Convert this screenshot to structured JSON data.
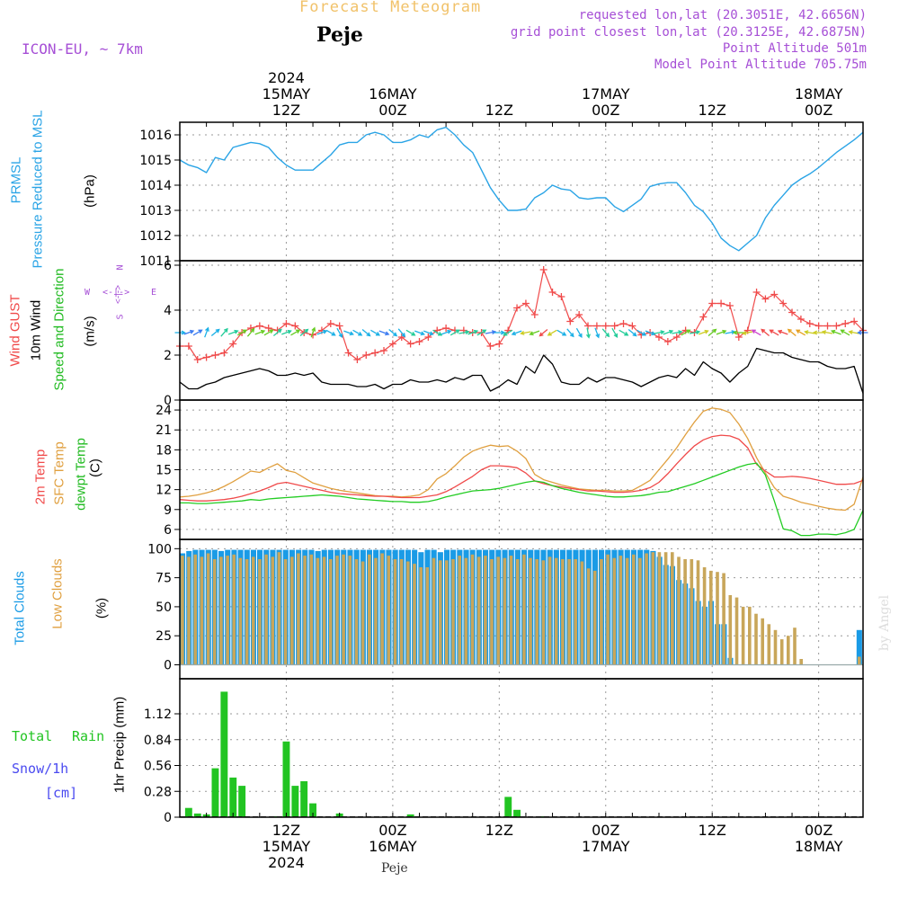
{
  "header": {
    "main_title": "Forecast Meteogram",
    "place": "Peje",
    "model": "ICON-EU, ~ 7km",
    "requested": "requested lon,lat (20.3051E, 42.6656N)",
    "grid_point": "grid point closest lon,lat (20.3125E, 42.6875N)",
    "point_altitude": "Point Altitude 501m",
    "model_altitude": "Model Point Altitude 705.75m"
  },
  "footer": {
    "place": "Peje",
    "credit": "by Angel"
  },
  "colors": {
    "pressure": "#2aa4e6",
    "gust": "#f04a4a",
    "wind": "#000000",
    "t2m": "#f04a4a",
    "sfc": "#e0a040",
    "dew": "#22cc22",
    "total_clouds": "#1a9be6",
    "low_clouds": "#c8a65a",
    "rain": "#22c422",
    "snow": "#4a4af0",
    "direction_label": "#a64fd6",
    "grid": "#999999"
  },
  "panel_labels": {
    "pressure": [
      "PRMSL",
      "Pressure Reduced to MSL",
      "(hPa)"
    ],
    "wind": [
      "Wind GUST",
      "10m Wind",
      "Speed and Direction",
      "(m/s)"
    ],
    "direction_compass": {
      "w": "W",
      "e": "E",
      "n": "N",
      "s": "S",
      "arrows": "<-|->"
    },
    "temp": [
      "2m Temp",
      "SFC Temp",
      "dewpt Temp",
      "(C)"
    ],
    "clouds": [
      "Total Clouds",
      "Low Clouds",
      "(%)"
    ],
    "precip": [
      "Total",
      "Rain",
      "Snow/1h",
      "[cm]",
      "1hr Precip (mm)"
    ]
  },
  "chart_data": {
    "type": "line",
    "time_axis_top": [
      {
        "h": 12,
        "lines": [
          "2024",
          "15MAY",
          "12Z"
        ]
      },
      {
        "h": 24,
        "lines": [
          "16MAY",
          "00Z"
        ]
      },
      {
        "h": 36,
        "lines": [
          "12Z"
        ]
      },
      {
        "h": 48,
        "lines": [
          "17MAY",
          "00Z"
        ]
      },
      {
        "h": 60,
        "lines": [
          "12Z"
        ]
      },
      {
        "h": 72,
        "lines": [
          "18MAY",
          "00Z"
        ]
      }
    ],
    "time_axis_bottom": [
      {
        "h": 12,
        "lines": [
          "12Z",
          "15MAY",
          "2024"
        ]
      },
      {
        "h": 24,
        "lines": [
          "00Z",
          "16MAY"
        ]
      },
      {
        "h": 36,
        "lines": [
          "12Z"
        ]
      },
      {
        "h": 48,
        "lines": [
          "00Z",
          "17MAY"
        ]
      },
      {
        "h": 60,
        "lines": [
          "12Z"
        ]
      },
      {
        "h": 72,
        "lines": [
          "00Z",
          "18MAY"
        ]
      }
    ],
    "time_range": [
      0,
      77
    ],
    "pressure": {
      "ylim": [
        1011,
        1016.5
      ],
      "yticks": [
        "1011",
        "1012",
        "1013",
        "1014",
        "1015",
        "1016"
      ],
      "x": [
        0,
        1,
        2,
        3,
        4,
        5,
        6,
        7,
        8,
        9,
        10,
        11,
        12,
        13,
        14,
        15,
        16,
        17,
        18,
        19,
        20,
        21,
        22,
        23,
        24,
        25,
        26,
        27,
        28,
        29,
        30,
        31,
        32,
        33,
        34,
        35,
        36,
        37,
        38,
        39,
        40,
        41,
        42,
        43,
        44,
        45,
        46,
        47,
        48,
        49,
        50,
        51,
        52,
        53,
        54,
        55,
        56,
        57,
        58,
        59,
        60,
        61,
        62,
        63,
        64,
        65,
        66,
        67,
        68,
        69,
        70,
        71,
        72,
        73,
        74,
        75,
        76,
        77
      ],
      "values": [
        1015.0,
        1014.8,
        1014.7,
        1014.5,
        1015.1,
        1015.0,
        1015.5,
        1015.6,
        1015.7,
        1015.65,
        1015.5,
        1015.1,
        1014.8,
        1014.6,
        1014.6,
        1014.6,
        1014.9,
        1015.2,
        1015.6,
        1015.7,
        1015.7,
        1016.0,
        1016.1,
        1016.0,
        1015.7,
        1015.7,
        1015.8,
        1016.0,
        1015.9,
        1016.2,
        1016.3,
        1016.0,
        1015.6,
        1015.3,
        1014.6,
        1013.9,
        1013.4,
        1013.0,
        1013.0,
        1013.05,
        1013.5,
        1013.7,
        1014.0,
        1013.85,
        1013.8,
        1013.5,
        1013.45,
        1013.5,
        1013.5,
        1013.15,
        1012.95,
        1013.2,
        1013.45,
        1013.95,
        1014.05,
        1014.1,
        1014.1,
        1013.7,
        1013.2,
        1012.95,
        1012.5,
        1011.9,
        1011.6,
        1011.4,
        1011.7,
        1012.0,
        1012.7,
        1013.2,
        1013.6,
        1014.0,
        1014.25,
        1014.45,
        1014.7,
        1015.0,
        1015.3,
        1015.55,
        1015.8,
        1016.1
      ]
    },
    "wind": {
      "ylim": [
        0,
        6.2
      ],
      "yticks": [
        "0",
        "2",
        "4",
        "6"
      ],
      "x": [
        0,
        1,
        2,
        3,
        4,
        5,
        6,
        7,
        8,
        9,
        10,
        11,
        12,
        13,
        14,
        15,
        16,
        17,
        18,
        19,
        20,
        21,
        22,
        23,
        24,
        25,
        26,
        27,
        28,
        29,
        30,
        31,
        32,
        33,
        34,
        35,
        36,
        37,
        38,
        39,
        40,
        41,
        42,
        43,
        44,
        45,
        46,
        47,
        48,
        49,
        50,
        51,
        52,
        53,
        54,
        55,
        56,
        57,
        58,
        59,
        60,
        61,
        62,
        63,
        64,
        65,
        66,
        67,
        68,
        69,
        70,
        71,
        72,
        73,
        74,
        75,
        76,
        77
      ],
      "gust": [
        2.4,
        2.4,
        1.8,
        1.9,
        2.0,
        2.1,
        2.5,
        3.0,
        3.2,
        3.3,
        3.2,
        3.1,
        3.4,
        3.3,
        3.0,
        2.9,
        3.1,
        3.4,
        3.3,
        2.1,
        1.8,
        2.0,
        2.1,
        2.2,
        2.5,
        2.8,
        2.5,
        2.6,
        2.8,
        3.1,
        3.2,
        3.1,
        3.1,
        3.0,
        3.0,
        2.4,
        2.5,
        3.1,
        4.1,
        4.3,
        3.8,
        5.8,
        4.8,
        4.6,
        3.5,
        3.8,
        3.3,
        3.3,
        3.3,
        3.3,
        3.4,
        3.3,
        2.9,
        3.0,
        2.8,
        2.6,
        2.8,
        3.1,
        3.0,
        3.7,
        4.3,
        4.3,
        4.2,
        2.8,
        3.1,
        4.8,
        4.5,
        4.7,
        4.3,
        3.9,
        3.6,
        3.4,
        3.3,
        3.3,
        3.3,
        3.4,
        3.5,
        3.1
      ],
      "speed": [
        0.8,
        0.5,
        0.5,
        0.7,
        0.8,
        1.0,
        1.1,
        1.2,
        1.3,
        1.4,
        1.3,
        1.1,
        1.1,
        1.2,
        1.1,
        1.2,
        0.8,
        0.7,
        0.7,
        0.7,
        0.6,
        0.6,
        0.7,
        0.5,
        0.7,
        0.7,
        0.9,
        0.8,
        0.8,
        0.9,
        0.8,
        1.0,
        0.9,
        1.1,
        1.1,
        0.4,
        0.6,
        0.9,
        0.7,
        1.5,
        1.2,
        2.0,
        1.6,
        0.8,
        0.7,
        0.7,
        1.0,
        0.8,
        1.0,
        1.0,
        0.9,
        0.8,
        0.6,
        0.8,
        1.0,
        1.1,
        1.0,
        1.4,
        1.1,
        1.7,
        1.4,
        1.2,
        0.8,
        1.2,
        1.5,
        2.3,
        2.2,
        2.1,
        2.1,
        1.9,
        1.8,
        1.7,
        1.7,
        1.5,
        1.4,
        1.4,
        1.5,
        0.3
      ],
      "direction_level": 3.0,
      "direction_deg": [
        270,
        250,
        240,
        200,
        230,
        220,
        250,
        240,
        220,
        250,
        240,
        230,
        250,
        240,
        230,
        200,
        250,
        300,
        330,
        290,
        300,
        310,
        300,
        290,
        310,
        320,
        300,
        290,
        290,
        300,
        250,
        240,
        260,
        250,
        240,
        260,
        270,
        60,
        70,
        80,
        70,
        50,
        60,
        300,
        320,
        330,
        350,
        340,
        320,
        330,
        300,
        310,
        300,
        290,
        260,
        250,
        260,
        240,
        260,
        250,
        230,
        250,
        260,
        90,
        80,
        120,
        130,
        120,
        110,
        130,
        120,
        100,
        90,
        100,
        110,
        120,
        100,
        90
      ]
    },
    "temperature": {
      "ylim": [
        4.5,
        25.5
      ],
      "yticks": [
        "6",
        "9",
        "12",
        "15",
        "18",
        "21",
        "24"
      ],
      "x": [
        0,
        1,
        2,
        3,
        4,
        5,
        6,
        7,
        8,
        9,
        10,
        11,
        12,
        13,
        14,
        15,
        16,
        17,
        18,
        19,
        20,
        21,
        22,
        23,
        24,
        25,
        26,
        27,
        28,
        29,
        30,
        31,
        32,
        33,
        34,
        35,
        36,
        37,
        38,
        39,
        40,
        41,
        42,
        43,
        44,
        45,
        46,
        47,
        48,
        49,
        50,
        51,
        52,
        53,
        54,
        55,
        56,
        57,
        58,
        59,
        60,
        61,
        62,
        63,
        64,
        65,
        66,
        67,
        68,
        69,
        70,
        71,
        72,
        73,
        74,
        75,
        76,
        77
      ],
      "t2m": [
        10.5,
        10.4,
        10.3,
        10.3,
        10.4,
        10.5,
        10.7,
        11.0,
        11.4,
        11.8,
        12.3,
        12.9,
        13.1,
        12.8,
        12.5,
        12.2,
        11.9,
        11.6,
        11.4,
        11.3,
        11.2,
        11.1,
        11.0,
        11.0,
        10.9,
        10.8,
        10.8,
        10.8,
        11.0,
        11.2,
        11.7,
        12.4,
        13.2,
        14.0,
        15.0,
        15.6,
        15.6,
        15.5,
        15.3,
        14.5,
        13.3,
        12.9,
        12.6,
        12.4,
        12.2,
        12.0,
        11.8,
        11.8,
        11.7,
        11.6,
        11.6,
        11.7,
        11.9,
        12.3,
        13.1,
        14.4,
        15.9,
        17.3,
        18.6,
        19.5,
        20.0,
        20.2,
        20.1,
        19.6,
        18.3,
        15.8,
        14.8,
        13.9,
        13.9,
        14.0,
        13.9,
        13.7,
        13.4,
        13.1,
        12.8,
        12.8,
        12.9,
        13.4
      ],
      "sfc": [
        10.9,
        11.0,
        11.2,
        11.5,
        11.9,
        12.5,
        13.2,
        14.0,
        14.8,
        14.6,
        15.3,
        15.9,
        14.9,
        14.6,
        13.8,
        13.0,
        12.6,
        12.2,
        11.9,
        11.7,
        11.5,
        11.3,
        11.1,
        11.0,
        11.0,
        10.9,
        11.0,
        11.2,
        12.0,
        13.6,
        14.4,
        15.6,
        16.9,
        17.8,
        18.3,
        18.7,
        18.5,
        18.6,
        17.8,
        16.7,
        14.3,
        13.5,
        13.1,
        12.7,
        12.4,
        12.1,
        12.0,
        11.9,
        11.9,
        11.8,
        11.8,
        11.9,
        12.6,
        13.4,
        15.0,
        16.6,
        18.3,
        20.3,
        22.2,
        23.8,
        24.3,
        24.1,
        23.6,
        21.9,
        19.7,
        16.8,
        14.5,
        12.3,
        11.0,
        10.6,
        10.1,
        9.8,
        9.5,
        9.2,
        9.0,
        8.9,
        9.8,
        13.9
      ],
      "dew": [
        10.0,
        10.0,
        9.9,
        9.9,
        10.0,
        10.1,
        10.2,
        10.3,
        10.5,
        10.4,
        10.6,
        10.7,
        10.8,
        10.9,
        11.0,
        11.1,
        11.2,
        11.1,
        11.0,
        10.8,
        10.6,
        10.5,
        10.4,
        10.3,
        10.2,
        10.2,
        10.1,
        10.1,
        10.2,
        10.5,
        10.9,
        11.2,
        11.5,
        11.8,
        11.9,
        12.0,
        12.2,
        12.5,
        12.8,
        13.1,
        13.3,
        13.1,
        12.6,
        12.2,
        11.9,
        11.6,
        11.4,
        11.2,
        11.0,
        10.9,
        10.9,
        11.0,
        11.1,
        11.3,
        11.6,
        11.7,
        12.1,
        12.5,
        12.9,
        13.4,
        13.9,
        14.4,
        14.9,
        15.4,
        15.8,
        16.0,
        14.2,
        10.3,
        6.1,
        5.8,
        5.1,
        5.1,
        5.3,
        5.3,
        5.2,
        5.5,
        6.0,
        8.9
      ]
    },
    "clouds": {
      "ylim": [
        0,
        100
      ],
      "yticks": [
        "0",
        "25",
        "50",
        "75",
        "100"
      ],
      "total": [
        96,
        98,
        99,
        99,
        99,
        99,
        98,
        99,
        99,
        99,
        99,
        99,
        99,
        99,
        99,
        99,
        99,
        99,
        99,
        99,
        99,
        98,
        99,
        99,
        99,
        99,
        99,
        99,
        99,
        99,
        99,
        99,
        99,
        99,
        99,
        99,
        99,
        97,
        99,
        99,
        97,
        99,
        99,
        99,
        99,
        99,
        99,
        99,
        99,
        99,
        99,
        99,
        99,
        99,
        99,
        99,
        99,
        99,
        99,
        99,
        99,
        99,
        99,
        99,
        99,
        99,
        99,
        99,
        99,
        99,
        99,
        99,
        99,
        98,
        93,
        86,
        85,
        73,
        70,
        66,
        55,
        50,
        55,
        35,
        35,
        6,
        0,
        0,
        0,
        0,
        0,
        0,
        0,
        0,
        0,
        0,
        0,
        0,
        0,
        0,
        0,
        0,
        0,
        0,
        0,
        30
      ],
      "low": [
        94,
        93,
        95,
        93,
        96,
        91,
        93,
        94,
        95,
        92,
        91,
        93,
        91,
        95,
        93,
        97,
        91,
        93,
        96,
        94,
        95,
        92,
        93,
        91,
        94,
        95,
        94,
        91,
        89,
        95,
        92,
        96,
        94,
        91,
        91,
        89,
        87,
        84,
        84,
        92,
        90,
        90,
        91,
        94,
        92,
        95,
        93,
        94,
        91,
        93,
        92,
        94,
        91,
        95,
        92,
        91,
        90,
        93,
        92,
        91,
        91,
        91,
        89,
        83,
        81,
        91,
        95,
        92,
        94,
        92,
        95,
        92,
        96,
        97,
        97,
        97,
        97,
        93,
        91,
        91,
        90,
        84,
        81,
        80,
        79,
        60,
        58,
        50,
        50,
        44,
        40,
        35,
        30,
        22,
        25,
        32,
        5,
        0,
        0,
        0,
        0,
        0,
        0,
        0,
        0,
        7
      ]
    },
    "precip": {
      "ylim": [
        0,
        1.5
      ],
      "yticks": [
        "0",
        "0.28",
        "0.56",
        "0.84",
        "1.12"
      ],
      "bars": [
        [
          1,
          0.1
        ],
        [
          2,
          0.04
        ],
        [
          3,
          0.03
        ],
        [
          4,
          0.53
        ],
        [
          5,
          1.36
        ],
        [
          6,
          0.43
        ],
        [
          7,
          0.34
        ],
        [
          11,
          0.01
        ],
        [
          12,
          0.82
        ],
        [
          13,
          0.34
        ],
        [
          14,
          0.39
        ],
        [
          15,
          0.15
        ],
        [
          18,
          0.04
        ],
        [
          26,
          0.03
        ],
        [
          37,
          0.22
        ],
        [
          38,
          0.08
        ],
        [
          41,
          0.01
        ]
      ]
    }
  }
}
